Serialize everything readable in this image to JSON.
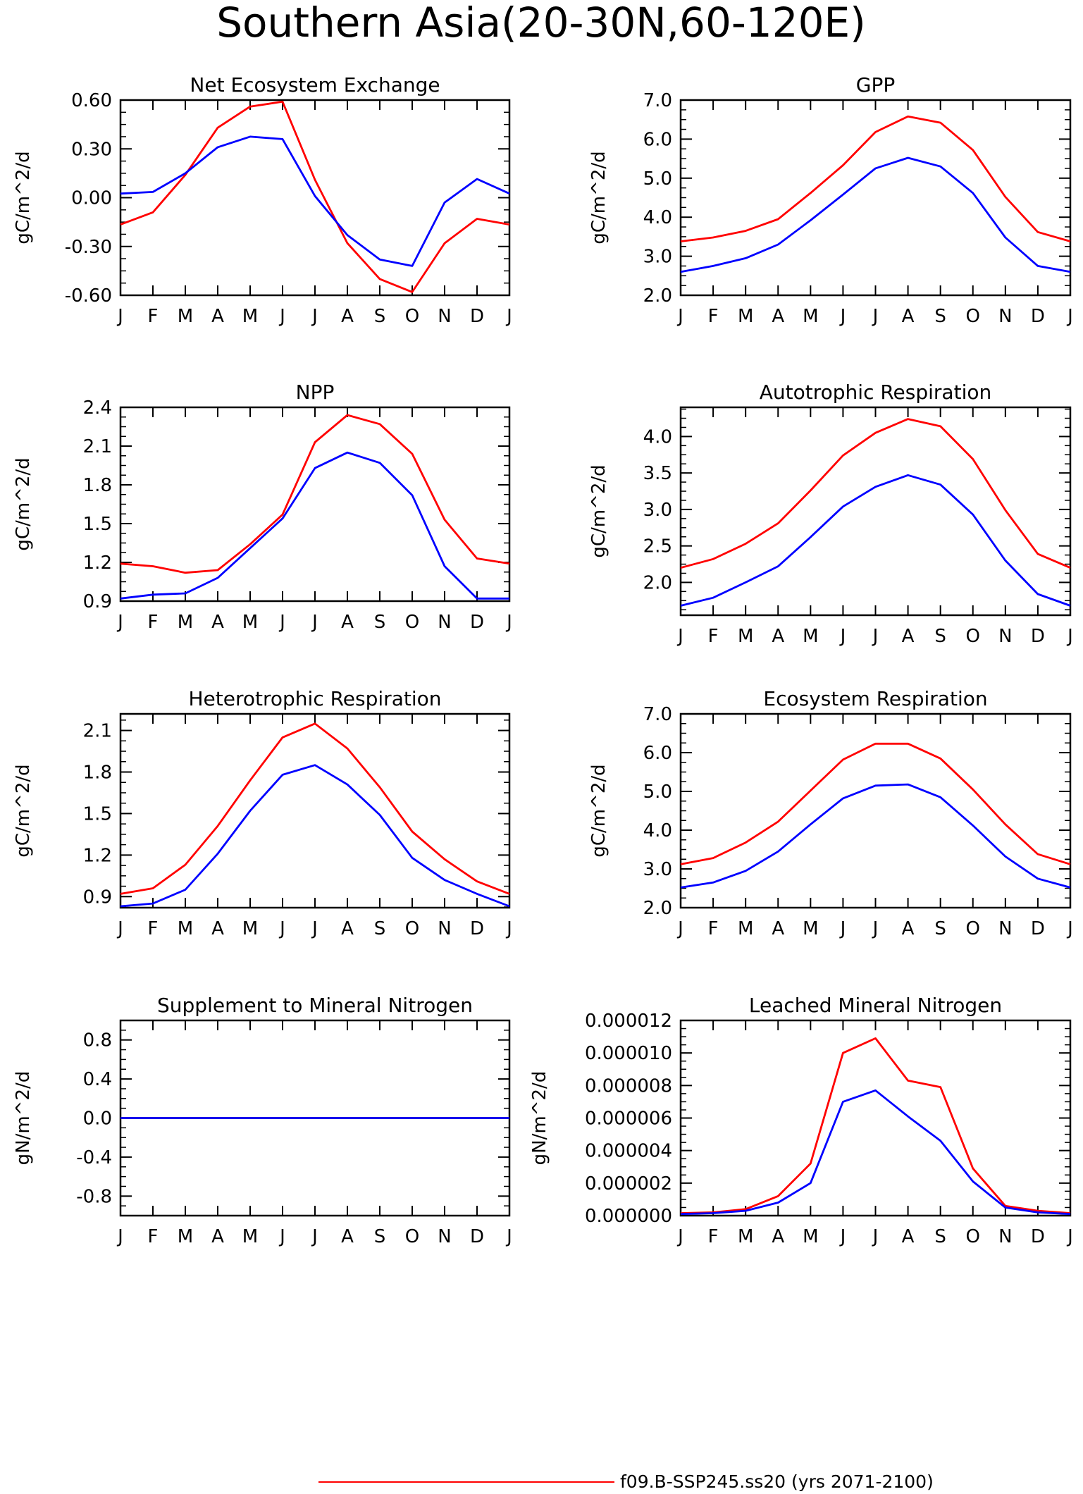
{
  "page_title": "Southern Asia(20-30N,60-120E)",
  "legend": [
    {
      "label": "f09.B-SSP245.ss20 (yrs 2071-2100)",
      "color": "#ff0000"
    }
  ],
  "colors": {
    "series_1": "#ff0000",
    "series_2": "#0000ff"
  },
  "chart_data": [
    {
      "type": "line",
      "title": "Net Ecosystem Exchange",
      "ylabel": "gC/m^2/d",
      "categories": [
        "J",
        "F",
        "M",
        "A",
        "M",
        "J",
        "J",
        "A",
        "S",
        "O",
        "N",
        "D",
        "J"
      ],
      "ylim": [
        -0.6,
        0.6
      ],
      "yticks": [
        "0.60",
        "0.30",
        "0.00",
        "-0.30",
        "-0.60"
      ],
      "series": [
        {
          "color": "#ff0000",
          "values": [
            -0.165,
            -0.09,
            0.14,
            0.43,
            0.56,
            0.59,
            0.11,
            -0.28,
            -0.5,
            -0.58,
            -0.28,
            -0.13,
            -0.165
          ]
        },
        {
          "color": "#0000ff",
          "values": [
            0.025,
            0.035,
            0.15,
            0.31,
            0.375,
            0.36,
            0.01,
            -0.23,
            -0.38,
            -0.42,
            -0.03,
            0.115,
            0.025
          ]
        }
      ]
    },
    {
      "type": "line",
      "title": "GPP",
      "ylabel": "gC/m^2/d",
      "categories": [
        "J",
        "F",
        "M",
        "A",
        "M",
        "J",
        "J",
        "A",
        "S",
        "O",
        "N",
        "D",
        "J"
      ],
      "ylim": [
        2.0,
        7.0
      ],
      "yticks": [
        "7.0",
        "6.0",
        "5.0",
        "4.0",
        "3.0",
        "2.0"
      ],
      "series": [
        {
          "color": "#ff0000",
          "values": [
            3.38,
            3.48,
            3.65,
            3.95,
            4.62,
            5.33,
            6.18,
            6.58,
            6.42,
            5.72,
            4.52,
            3.62,
            3.38
          ]
        },
        {
          "color": "#0000ff",
          "values": [
            2.6,
            2.75,
            2.95,
            3.3,
            3.92,
            4.58,
            5.25,
            5.52,
            5.3,
            4.62,
            3.48,
            2.75,
            2.6
          ]
        }
      ]
    },
    {
      "type": "line",
      "title": "NPP",
      "ylabel": "gC/m^2/d",
      "categories": [
        "J",
        "F",
        "M",
        "A",
        "M",
        "J",
        "J",
        "A",
        "S",
        "O",
        "N",
        "D",
        "J"
      ],
      "ylim": [
        0.9,
        2.4
      ],
      "yticks": [
        "2.4",
        "2.1",
        "1.8",
        "1.5",
        "1.2",
        "0.9"
      ],
      "series": [
        {
          "color": "#ff0000",
          "values": [
            1.19,
            1.17,
            1.12,
            1.14,
            1.34,
            1.57,
            2.13,
            2.34,
            2.27,
            2.04,
            1.53,
            1.23,
            1.19
          ]
        },
        {
          "color": "#0000ff",
          "values": [
            0.92,
            0.95,
            0.96,
            1.08,
            1.31,
            1.54,
            1.93,
            2.05,
            1.97,
            1.72,
            1.17,
            0.92,
            0.92
          ]
        }
      ]
    },
    {
      "type": "line",
      "title": "Autotrophic Respiration",
      "ylabel": "gC/m^2/d",
      "categories": [
        "J",
        "F",
        "M",
        "A",
        "M",
        "J",
        "J",
        "A",
        "S",
        "O",
        "N",
        "D",
        "J"
      ],
      "ylim": [
        1.55,
        4.4
      ],
      "yticks": [
        "4.0",
        "3.5",
        "3.0",
        "2.5",
        "2.0"
      ],
      "series": [
        {
          "color": "#ff0000",
          "values": [
            2.2,
            2.32,
            2.53,
            2.81,
            3.26,
            3.74,
            4.05,
            4.24,
            4.14,
            3.69,
            2.99,
            2.39,
            2.2
          ]
        },
        {
          "color": "#0000ff",
          "values": [
            1.68,
            1.79,
            2.0,
            2.22,
            2.62,
            3.04,
            3.31,
            3.47,
            3.34,
            2.93,
            2.3,
            1.84,
            1.68
          ]
        }
      ]
    },
    {
      "type": "line",
      "title": "Heterotrophic Respiration",
      "ylabel": "gC/m^2/d",
      "categories": [
        "J",
        "F",
        "M",
        "A",
        "M",
        "J",
        "J",
        "A",
        "S",
        "O",
        "N",
        "D",
        "J"
      ],
      "ylim": [
        0.82,
        2.22
      ],
      "yticks": [
        "2.1",
        "1.8",
        "1.5",
        "1.2",
        "0.9"
      ],
      "series": [
        {
          "color": "#ff0000",
          "values": [
            0.92,
            0.96,
            1.13,
            1.41,
            1.74,
            2.05,
            2.15,
            1.97,
            1.69,
            1.37,
            1.17,
            1.01,
            0.92
          ]
        },
        {
          "color": "#0000ff",
          "values": [
            0.83,
            0.85,
            0.95,
            1.21,
            1.52,
            1.78,
            1.85,
            1.71,
            1.49,
            1.18,
            1.02,
            0.92,
            0.83
          ]
        }
      ]
    },
    {
      "type": "line",
      "title": "Ecosystem Respiration",
      "ylabel": "gC/m^2/d",
      "categories": [
        "J",
        "F",
        "M",
        "A",
        "M",
        "J",
        "J",
        "A",
        "S",
        "O",
        "N",
        "D",
        "J"
      ],
      "ylim": [
        2.0,
        7.0
      ],
      "yticks": [
        "7.0",
        "6.0",
        "5.0",
        "4.0",
        "3.0",
        "2.0"
      ],
      "series": [
        {
          "color": "#ff0000",
          "values": [
            3.12,
            3.28,
            3.68,
            4.22,
            5.02,
            5.82,
            6.23,
            6.23,
            5.85,
            5.05,
            4.15,
            3.38,
            3.12
          ]
        },
        {
          "color": "#0000ff",
          "values": [
            2.52,
            2.65,
            2.95,
            3.45,
            4.15,
            4.82,
            5.15,
            5.18,
            4.85,
            4.12,
            3.32,
            2.75,
            2.52
          ]
        }
      ]
    },
    {
      "type": "line",
      "title": "Supplement to Mineral Nitrogen",
      "ylabel": "gN/m^2/d",
      "categories": [
        "J",
        "F",
        "M",
        "A",
        "M",
        "J",
        "J",
        "A",
        "S",
        "O",
        "N",
        "D",
        "J"
      ],
      "ylim": [
        -1.0,
        1.0
      ],
      "yticks": [
        "0.8",
        "0.4",
        "0.0",
        "-0.4",
        "-0.8"
      ],
      "series": [
        {
          "color": "#ff0000",
          "values": [
            0,
            0,
            0,
            0,
            0,
            0,
            0,
            0,
            0,
            0,
            0,
            0,
            0
          ]
        },
        {
          "color": "#0000ff",
          "values": [
            0,
            0,
            0,
            0,
            0,
            0,
            0,
            0,
            0,
            0,
            0,
            0,
            0
          ]
        }
      ]
    },
    {
      "type": "line",
      "title": "Leached Mineral Nitrogen",
      "ylabel": "gN/m^2/d",
      "categories": [
        "J",
        "F",
        "M",
        "A",
        "M",
        "J",
        "J",
        "A",
        "S",
        "O",
        "N",
        "D",
        "J"
      ],
      "ylim": [
        0.0,
        1.2e-05
      ],
      "yticks": [
        "0.000012",
        "0.000010",
        "0.000008",
        "0.000006",
        "0.000004",
        "0.000002",
        "0.000000"
      ],
      "series": [
        {
          "color": "#ff0000",
          "values": [
            1.5e-07,
            2e-07,
            4e-07,
            1.2e-06,
            3.2e-06,
            1e-05,
            1.09e-05,
            8.3e-06,
            7.9e-06,
            2.9e-06,
            6e-07,
            3e-07,
            1.5e-07
          ]
        },
        {
          "color": "#0000ff",
          "values": [
            1e-07,
            1.5e-07,
            3e-07,
            8e-07,
            2e-06,
            7e-06,
            7.7e-06,
            6.1e-06,
            4.6e-06,
            2.1e-06,
            5e-07,
            2e-07,
            1e-07
          ]
        }
      ]
    }
  ]
}
